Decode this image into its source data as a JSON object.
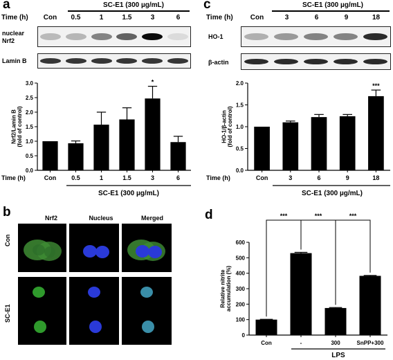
{
  "panels": {
    "a": "a",
    "b": "b",
    "c": "c",
    "d": "d"
  },
  "panel_a": {
    "time_label": "Time (h)",
    "treatment": "SC-E1 (300 µg/mL)",
    "lanes": [
      "Con",
      "0.5",
      "1",
      "1.5",
      "3",
      "6"
    ],
    "blots": [
      {
        "label_line1": "nuclear",
        "label_line2": "Nrf2",
        "intensities": [
          0.2,
          0.22,
          0.45,
          0.6,
          1.0,
          0.05
        ]
      },
      {
        "label_line1": "Lamin B",
        "label_line2": "",
        "intensities": [
          0.8,
          0.8,
          0.8,
          0.8,
          0.8,
          0.8
        ]
      }
    ]
  },
  "panel_c": {
    "time_label": "Time (h)",
    "treatment": "SC-E1 (300 µg/mL)",
    "lanes": [
      "Con",
      "3",
      "6",
      "9",
      "18"
    ],
    "blots": [
      {
        "label_line1": "HO-1",
        "label_line2": "",
        "intensities": [
          0.25,
          0.35,
          0.45,
          0.45,
          0.85
        ]
      },
      {
        "label_line1": "β-actin",
        "label_line2": "",
        "intensities": [
          0.85,
          0.85,
          0.85,
          0.85,
          0.85
        ]
      }
    ]
  },
  "panel_b": {
    "col_headers": [
      "Nrf2",
      "Nucleus",
      "Merged"
    ],
    "row_labels": [
      "Con",
      "SC-E1"
    ]
  },
  "chart_data": [
    {
      "type": "bar",
      "panel": "a",
      "categories": [
        "Con",
        "0.5",
        "1",
        "1.5",
        "3",
        "6"
      ],
      "values": [
        1.0,
        0.93,
        1.57,
        1.75,
        2.47,
        0.97
      ],
      "errors": [
        0,
        0.08,
        0.43,
        0.4,
        0.42,
        0.2
      ],
      "significance": [
        "",
        "",
        "",
        "",
        "*",
        ""
      ],
      "ylabel_line1": "Nrf2/Lamin B",
      "ylabel_line2": "(fold of control)",
      "xlabel": "Time (h)",
      "treatment": "SC-E1 (300 µg/mL)",
      "ylim": [
        0,
        3.0
      ],
      "yticks": [
        "0.0",
        "0.5",
        "1.0",
        "1.5",
        "2.0",
        "2.5",
        "3.0"
      ]
    },
    {
      "type": "bar",
      "panel": "c",
      "categories": [
        "Con",
        "3",
        "6",
        "9",
        "18"
      ],
      "values": [
        1.0,
        1.1,
        1.22,
        1.24,
        1.7
      ],
      "errors": [
        0,
        0.03,
        0.06,
        0.04,
        0.14
      ],
      "significance": [
        "",
        "",
        "",
        "",
        "***"
      ],
      "ylabel_line1": "HO-1/β-actin",
      "ylabel_line2": "(fold of control)",
      "xlabel": "Time (h)",
      "treatment": "SC-E1 (300 µg/mL)",
      "ylim": [
        0,
        2.0
      ],
      "yticks": [
        "0.0",
        "0.5",
        "1.0",
        "1.5",
        "2.0"
      ]
    },
    {
      "type": "bar",
      "panel": "d",
      "categories": [
        "Con",
        "-",
        "300",
        "SnPP+300"
      ],
      "values": [
        100,
        530,
        175,
        383
      ],
      "errors": [
        2,
        5,
        3,
        3
      ],
      "ylabel_line1": "Relative nitrite",
      "ylabel_line2": "accumulation (%)",
      "group_label": "LPS",
      "comparisons": [
        {
          "from": 0,
          "to": 1,
          "label": "***"
        },
        {
          "from": 1,
          "to": 2,
          "label": "***"
        },
        {
          "from": 2,
          "to": 3,
          "label": "***"
        }
      ],
      "ylim": [
        0,
        600
      ],
      "yticks": [
        "0",
        "100",
        "200",
        "300",
        "400",
        "500",
        "600"
      ]
    }
  ]
}
